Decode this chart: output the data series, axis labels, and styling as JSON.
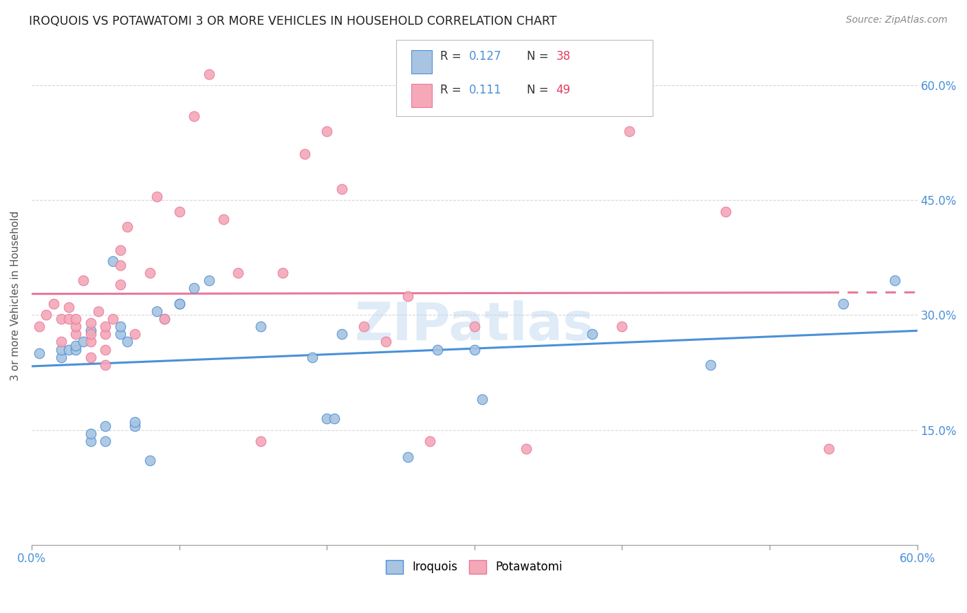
{
  "title": "IROQUOIS VS POTAWATOMI 3 OR MORE VEHICLES IN HOUSEHOLD CORRELATION CHART",
  "source": "Source: ZipAtlas.com",
  "ylabel": "3 or more Vehicles in Household",
  "xlim": [
    0.0,
    0.6
  ],
  "ylim": [
    0.0,
    0.65
  ],
  "iroquois_color": "#a8c4e0",
  "potawatomi_color": "#f4a8b8",
  "iroquois_line_color": "#4a90d9",
  "potawatomi_line_color": "#e8789a",
  "legend_r_color": "#4a90d9",
  "legend_n_color": "#e04060",
  "watermark": "ZIPatlas",
  "background_color": "#ffffff",
  "iroquois_x": [
    0.005,
    0.02,
    0.02,
    0.025,
    0.03,
    0.03,
    0.035,
    0.04,
    0.04,
    0.04,
    0.05,
    0.05,
    0.055,
    0.06,
    0.06,
    0.065,
    0.07,
    0.07,
    0.08,
    0.085,
    0.09,
    0.1,
    0.1,
    0.11,
    0.12,
    0.155,
    0.19,
    0.2,
    0.205,
    0.21,
    0.255,
    0.275,
    0.3,
    0.305,
    0.38,
    0.46,
    0.55,
    0.585
  ],
  "iroquois_y": [
    0.25,
    0.245,
    0.255,
    0.255,
    0.255,
    0.26,
    0.265,
    0.135,
    0.145,
    0.28,
    0.135,
    0.155,
    0.37,
    0.275,
    0.285,
    0.265,
    0.155,
    0.16,
    0.11,
    0.305,
    0.295,
    0.315,
    0.315,
    0.335,
    0.345,
    0.285,
    0.245,
    0.165,
    0.165,
    0.275,
    0.115,
    0.255,
    0.255,
    0.19,
    0.275,
    0.235,
    0.315,
    0.345
  ],
  "potawatomi_x": [
    0.005,
    0.01,
    0.015,
    0.02,
    0.02,
    0.025,
    0.025,
    0.03,
    0.03,
    0.03,
    0.035,
    0.04,
    0.04,
    0.04,
    0.04,
    0.045,
    0.05,
    0.05,
    0.05,
    0.05,
    0.055,
    0.06,
    0.06,
    0.06,
    0.065,
    0.07,
    0.08,
    0.085,
    0.09,
    0.1,
    0.11,
    0.12,
    0.13,
    0.14,
    0.155,
    0.17,
    0.185,
    0.2,
    0.21,
    0.225,
    0.24,
    0.255,
    0.27,
    0.3,
    0.335,
    0.4,
    0.405,
    0.47,
    0.54
  ],
  "potawatomi_y": [
    0.285,
    0.3,
    0.315,
    0.265,
    0.295,
    0.295,
    0.31,
    0.275,
    0.285,
    0.295,
    0.345,
    0.245,
    0.265,
    0.275,
    0.29,
    0.305,
    0.235,
    0.255,
    0.275,
    0.285,
    0.295,
    0.34,
    0.365,
    0.385,
    0.415,
    0.275,
    0.355,
    0.455,
    0.295,
    0.435,
    0.56,
    0.615,
    0.425,
    0.355,
    0.135,
    0.355,
    0.51,
    0.54,
    0.465,
    0.285,
    0.265,
    0.325,
    0.135,
    0.285,
    0.125,
    0.285,
    0.54,
    0.435,
    0.125
  ]
}
